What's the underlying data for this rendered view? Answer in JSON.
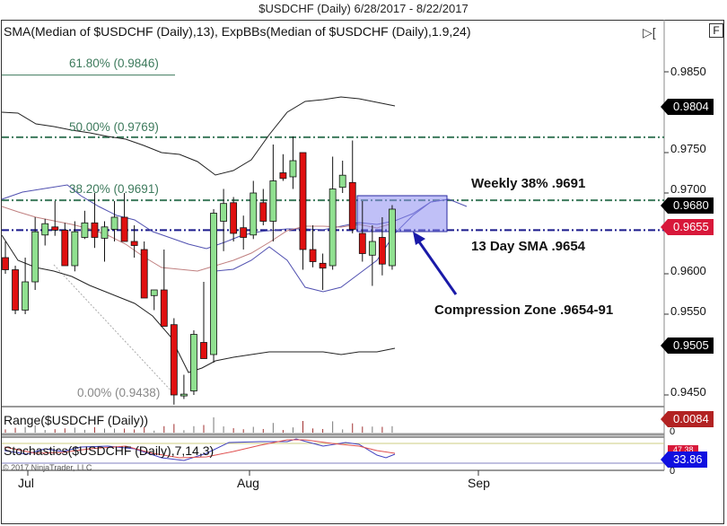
{
  "window": {
    "title": "$USDCHF (Daily)  6/28/2017 - 8/22/2017"
  },
  "main_panel": {
    "indicator_label": "SMA(Median of $USDCHF (Daily),13), ExpBBs(Median of $USDCHF (Daily),1.9,24)",
    "buttons": {
      "play_label": "▷[",
      "f_label": "F"
    },
    "fib_levels": [
      {
        "label": "61.80% (0.9846)",
        "price": 0.9846
      },
      {
        "label": "50.00% (0.9769)",
        "price": 0.9769
      },
      {
        "label": "38.20% (0.9691)",
        "price": 0.9691
      },
      {
        "label": "0.00% (0.9438)",
        "price": 0.9438
      }
    ],
    "annotations": {
      "weekly": "Weekly 38% .9691",
      "sma": "13 Day SMA .9654",
      "zone": "Compression Zone .9654-91"
    },
    "price_axis": [
      "0.9850",
      "0.9750",
      "0.9700",
      "0.9600",
      "0.9550",
      "0.9450"
    ],
    "price_tags": [
      {
        "value": "0.9804",
        "color": "black"
      },
      {
        "value": "0.9680",
        "color": "black"
      },
      {
        "value": "0.9655",
        "color": "red"
      },
      {
        "value": "0.9505",
        "color": "black"
      }
    ]
  },
  "range_panel": {
    "label": "Range($USDCHF (Daily))",
    "tag": "0.0084",
    "axis_zero": "0"
  },
  "stoch_panel": {
    "label": "Stochastics($USDCHF (Daily),7,14,3)",
    "tag": "33.86",
    "tag_hidden": "47.38",
    "axis_zero": "0"
  },
  "copyright": "© 2017 NinjaTrader, LLC",
  "x_axis": [
    "Jul",
    "Aug",
    "Sep"
  ],
  "colors": {
    "up_candle": "#90e090",
    "down_candle": "#e01010",
    "fib_line": "#3d7a5c",
    "sma_line": "#1a1a8c",
    "zone_fill": "#8c8cf0",
    "stoch_k": "#4040c0",
    "stoch_d": "#e05050"
  },
  "chart_data": {
    "type": "candlestick",
    "title": "$USDCHF (Daily) 6/28/2017 - 8/22/2017",
    "ylim": [
      0.942,
      0.988
    ],
    "x_ticks": [
      "Jul",
      "Aug",
      "Sep"
    ],
    "candles": [
      {
        "o": 0.962,
        "h": 0.964,
        "l": 0.96,
        "c": 0.9605
      },
      {
        "o": 0.9605,
        "h": 0.961,
        "l": 0.955,
        "c": 0.9555
      },
      {
        "o": 0.9555,
        "h": 0.962,
        "l": 0.955,
        "c": 0.959
      },
      {
        "o": 0.959,
        "h": 0.967,
        "l": 0.958,
        "c": 0.9652
      },
      {
        "o": 0.9648,
        "h": 0.9668,
        "l": 0.9635,
        "c": 0.9662
      },
      {
        "o": 0.9658,
        "h": 0.969,
        "l": 0.9647,
        "c": 0.9654
      },
      {
        "o": 0.9654,
        "h": 0.9663,
        "l": 0.961,
        "c": 0.961
      },
      {
        "o": 0.961,
        "h": 0.9665,
        "l": 0.9603,
        "c": 0.9652
      },
      {
        "o": 0.9645,
        "h": 0.9678,
        "l": 0.9643,
        "c": 0.9663
      },
      {
        "o": 0.9663,
        "h": 0.97,
        "l": 0.9632,
        "c": 0.9645
      },
      {
        "o": 0.9644,
        "h": 0.9665,
        "l": 0.9615,
        "c": 0.9658
      },
      {
        "o": 0.9655,
        "h": 0.969,
        "l": 0.964,
        "c": 0.967
      },
      {
        "o": 0.967,
        "h": 0.97,
        "l": 0.965,
        "c": 0.964
      },
      {
        "o": 0.964,
        "h": 0.966,
        "l": 0.962,
        "c": 0.9635
      },
      {
        "o": 0.963,
        "h": 0.964,
        "l": 0.957,
        "c": 0.957
      },
      {
        "o": 0.9573,
        "h": 0.958,
        "l": 0.9555,
        "c": 0.958
      },
      {
        "o": 0.958,
        "h": 0.963,
        "l": 0.955,
        "c": 0.9535
      },
      {
        "o": 0.9537,
        "h": 0.9545,
        "l": 0.9438,
        "c": 0.945
      },
      {
        "o": 0.945,
        "h": 0.9475,
        "l": 0.9445,
        "c": 0.9451
      },
      {
        "o": 0.9455,
        "h": 0.953,
        "l": 0.945,
        "c": 0.9525
      },
      {
        "o": 0.9515,
        "h": 0.959,
        "l": 0.9495,
        "c": 0.9495
      },
      {
        "o": 0.95,
        "h": 0.968,
        "l": 0.949,
        "c": 0.9675
      },
      {
        "o": 0.9665,
        "h": 0.9705,
        "l": 0.9628,
        "c": 0.9687
      },
      {
        "o": 0.9688,
        "h": 0.9695,
        "l": 0.964,
        "c": 0.965
      },
      {
        "o": 0.9657,
        "h": 0.9672,
        "l": 0.963,
        "c": 0.9645
      },
      {
        "o": 0.9648,
        "h": 0.9715,
        "l": 0.9643,
        "c": 0.97
      },
      {
        "o": 0.9688,
        "h": 0.9705,
        "l": 0.966,
        "c": 0.9665
      },
      {
        "o": 0.9665,
        "h": 0.976,
        "l": 0.964,
        "c": 0.9715
      },
      {
        "o": 0.9725,
        "h": 0.9748,
        "l": 0.9715,
        "c": 0.9718
      },
      {
        "o": 0.972,
        "h": 0.977,
        "l": 0.9705,
        "c": 0.974
      },
      {
        "o": 0.975,
        "h": 0.975,
        "l": 0.9605,
        "c": 0.963
      },
      {
        "o": 0.963,
        "h": 0.966,
        "l": 0.9608,
        "c": 0.9615
      },
      {
        "o": 0.9613,
        "h": 0.9625,
        "l": 0.958,
        "c": 0.9607
      },
      {
        "o": 0.961,
        "h": 0.9745,
        "l": 0.9605,
        "c": 0.9705
      },
      {
        "o": 0.9707,
        "h": 0.974,
        "l": 0.97,
        "c": 0.9722
      },
      {
        "o": 0.9713,
        "h": 0.9765,
        "l": 0.965,
        "c": 0.9655
      },
      {
        "o": 0.965,
        "h": 0.969,
        "l": 0.9615,
        "c": 0.9625
      },
      {
        "o": 0.9623,
        "h": 0.966,
        "l": 0.9585,
        "c": 0.964
      },
      {
        "o": 0.9645,
        "h": 0.967,
        "l": 0.9598,
        "c": 0.9612
      },
      {
        "o": 0.961,
        "h": 0.9685,
        "l": 0.9605,
        "c": 0.968
      }
    ],
    "horizontal_lines": [
      {
        "label": "61.80% (0.9846)",
        "value": 0.9846,
        "style": "solid"
      },
      {
        "label": "50.00% (0.9769)",
        "value": 0.9769,
        "style": "dash-dot"
      },
      {
        "label": "38.20% (0.9691)",
        "value": 0.9691,
        "style": "dash-dot"
      },
      {
        "label": "13 Day SMA",
        "value": 0.9654,
        "style": "dash-dot"
      },
      {
        "label": "0.00% (0.9438)",
        "value": 0.9438,
        "style": "none"
      }
    ],
    "zone": {
      "label": "Compression Zone .9654-91",
      "low": 0.9654,
      "high": 0.9691
    },
    "last_values": {
      "upper_band": 0.9804,
      "close": 0.968,
      "sma13": 0.9655,
      "lower_band": 0.9505,
      "range": 0.0084,
      "stoch_k": 33.86
    },
    "series": [
      {
        "name": "Upper ExpBB",
        "values": [
          0.981,
          0.9805,
          0.979,
          0.978,
          0.9773,
          0.9768,
          0.9765,
          0.976,
          0.975,
          0.9745,
          0.973,
          0.972,
          0.9705,
          0.97,
          0.972,
          0.9745,
          0.9752,
          0.977,
          0.979,
          0.98,
          0.981,
          0.9812,
          0.9808,
          0.9804
        ]
      },
      {
        "name": "SMA13",
        "values": [
          0.9685,
          0.968,
          0.9675,
          0.9665,
          0.9655,
          0.964,
          0.9625,
          0.962,
          0.9625,
          0.9635,
          0.9652,
          0.9655,
          0.965,
          0.9652,
          0.966,
          0.9658,
          0.9655
        ]
      },
      {
        "name": "Lower ExpBB",
        "values": [
          0.963,
          0.9595,
          0.9575,
          0.9555,
          0.9535,
          0.95,
          0.946,
          0.9475,
          0.949,
          0.9497,
          0.95,
          0.9502,
          0.9497,
          0.9502,
          0.9505
        ]
      }
    ]
  }
}
